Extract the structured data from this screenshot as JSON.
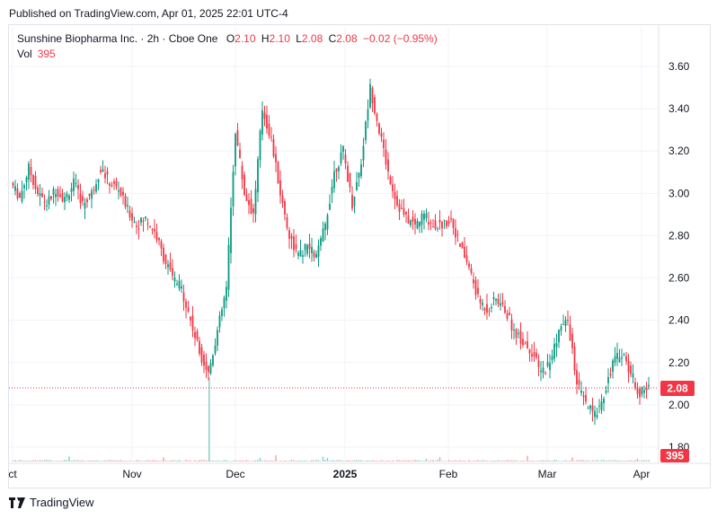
{
  "header": {
    "published": "Published on TradingView.com, Apr 01, 2025 22:01 UTC-4"
  },
  "legend": {
    "symbol": "Sunshine Biopharma Inc. · 2h · Cboe One",
    "open_label": "O",
    "open": "2.10",
    "high_label": "H",
    "high": "2.10",
    "low_label": "L",
    "low": "2.08",
    "close_label": "C",
    "close": "2.08",
    "change": "−0.02 (−0.95%)",
    "vol_label": "Vol",
    "vol": "395"
  },
  "footer": {
    "brand": "TradingView",
    "logo_icon": "tradingview-logo-icon"
  },
  "colors": {
    "up": "#089981",
    "down": "#f23645",
    "grid": "#f0f3fa",
    "text": "#131722"
  },
  "chart_data": {
    "type": "candlestick",
    "y_ticks": [
      "3.60",
      "3.40",
      "3.20",
      "3.00",
      "2.80",
      "2.60",
      "2.40",
      "2.20",
      "2.00",
      "1.80"
    ],
    "y_values": [
      3.6,
      3.4,
      3.2,
      3.0,
      2.8,
      2.6,
      2.4,
      2.2,
      2.0,
      1.8
    ],
    "ylim": [
      1.8,
      3.6
    ],
    "x_ticks": [
      "ct",
      "Nov",
      "Dec",
      "2025",
      "Feb",
      "Mar",
      "Apr"
    ],
    "last_price": "2.08",
    "last_price_value": 2.08,
    "last_volume": "395",
    "price_path": [
      [
        "Oct",
        3.05
      ],
      [
        "Oct",
        2.98
      ],
      [
        "Oct",
        3.12
      ],
      [
        "Oct",
        3.0
      ],
      [
        "Oct",
        2.95
      ],
      [
        "Oct",
        3.02
      ],
      [
        "Oct",
        2.97
      ],
      [
        "Oct",
        3.05
      ],
      [
        "Oct",
        2.95
      ],
      [
        "Oct",
        3.0
      ],
      [
        "Oct",
        3.12
      ],
      [
        "Oct",
        3.05
      ],
      [
        "Oct",
        3.02
      ],
      [
        "Oct",
        2.92
      ],
      [
        "Oct",
        2.85
      ],
      [
        "Nov",
        2.88
      ],
      [
        "Nov",
        2.82
      ],
      [
        "Nov",
        2.7
      ],
      [
        "Nov",
        2.6
      ],
      [
        "Nov",
        2.55
      ],
      [
        "Nov",
        2.4
      ],
      [
        "Nov",
        2.25
      ],
      [
        "Nov",
        2.15
      ],
      [
        "Nov",
        2.35
      ],
      [
        "Nov",
        2.55
      ],
      [
        "Dec",
        3.3
      ],
      [
        "Dec",
        3.0
      ],
      [
        "Dec",
        2.9
      ],
      [
        "Dec",
        3.4
      ],
      [
        "Dec",
        3.25
      ],
      [
        "Dec",
        3.0
      ],
      [
        "Dec",
        2.8
      ],
      [
        "Dec",
        2.7
      ],
      [
        "Dec",
        2.75
      ],
      [
        "Dec",
        2.7
      ],
      [
        "Dec",
        2.85
      ],
      [
        "Dec",
        3.1
      ],
      [
        "Dec",
        3.2
      ],
      [
        "Dec",
        2.95
      ],
      [
        "2025",
        3.15
      ],
      [
        "2025",
        3.5
      ],
      [
        "2025",
        3.3
      ],
      [
        "2025",
        3.1
      ],
      [
        "2025",
        2.95
      ],
      [
        "2025",
        2.88
      ],
      [
        "2025",
        2.85
      ],
      [
        "2025",
        2.9
      ],
      [
        "2025",
        2.85
      ],
      [
        "2025",
        2.85
      ],
      [
        "2025",
        2.88
      ],
      [
        "Feb",
        2.75
      ],
      [
        "Feb",
        2.65
      ],
      [
        "Feb",
        2.5
      ],
      [
        "Feb",
        2.45
      ],
      [
        "Feb",
        2.5
      ],
      [
        "Feb",
        2.45
      ],
      [
        "Feb",
        2.35
      ],
      [
        "Feb",
        2.3
      ],
      [
        "Feb",
        2.25
      ],
      [
        "Feb",
        2.15
      ],
      [
        "Mar",
        2.2
      ],
      [
        "Mar",
        2.35
      ],
      [
        "Mar",
        2.4
      ],
      [
        "Mar",
        2.1
      ],
      [
        "Mar",
        2.0
      ],
      [
        "Mar",
        1.95
      ],
      [
        "Mar",
        2.05
      ],
      [
        "Mar",
        2.2
      ],
      [
        "Mar",
        2.25
      ],
      [
        "Mar",
        2.15
      ],
      [
        "Mar",
        2.05
      ],
      [
        "Apr",
        2.08
      ]
    ]
  }
}
